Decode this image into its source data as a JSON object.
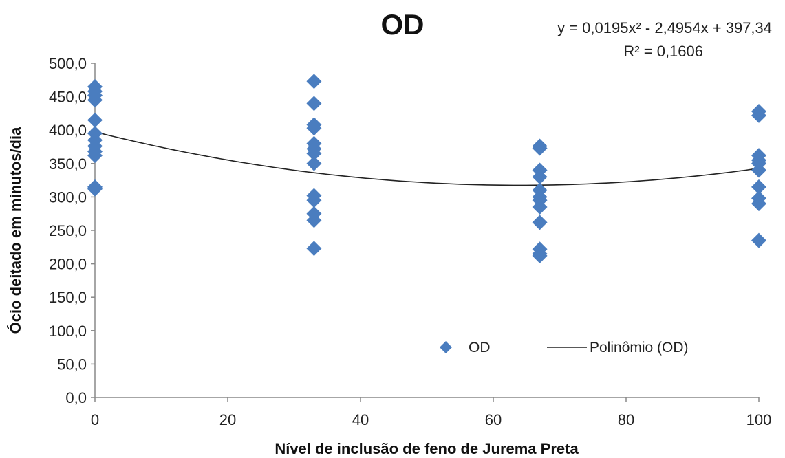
{
  "chart_data": {
    "type": "scatter",
    "title": "OD",
    "xlabel": "Nível de inclusão de feno de Jurema Preta",
    "ylabel": "Ócio deitado em minutos/dia",
    "xlim": [
      0,
      100
    ],
    "ylim": [
      0,
      500
    ],
    "x_ticks": [
      "0",
      "20",
      "40",
      "60",
      "80",
      "100"
    ],
    "y_ticks": [
      "0,0",
      "50,0",
      "100,0",
      "150,0",
      "200,0",
      "250,0",
      "300,0",
      "350,0",
      "400,0",
      "450,0",
      "500,0"
    ],
    "grid": false,
    "legend_position": "bottom-right",
    "marker_color": "#4a7dbf",
    "line_color": "#222222",
    "series": [
      {
        "name": "OD",
        "kind": "scatter",
        "points": [
          {
            "x": 0,
            "y": 465
          },
          {
            "x": 0,
            "y": 458
          },
          {
            "x": 0,
            "y": 452
          },
          {
            "x": 0,
            "y": 445
          },
          {
            "x": 0,
            "y": 415
          },
          {
            "x": 0,
            "y": 395
          },
          {
            "x": 0,
            "y": 385
          },
          {
            "x": 0,
            "y": 376
          },
          {
            "x": 0,
            "y": 368
          },
          {
            "x": 0,
            "y": 362
          },
          {
            "x": 0,
            "y": 315
          },
          {
            "x": 0,
            "y": 312
          },
          {
            "x": 33,
            "y": 473
          },
          {
            "x": 33,
            "y": 440
          },
          {
            "x": 33,
            "y": 408
          },
          {
            "x": 33,
            "y": 403
          },
          {
            "x": 33,
            "y": 380
          },
          {
            "x": 33,
            "y": 372
          },
          {
            "x": 33,
            "y": 365
          },
          {
            "x": 33,
            "y": 350
          },
          {
            "x": 33,
            "y": 302
          },
          {
            "x": 33,
            "y": 295
          },
          {
            "x": 33,
            "y": 275
          },
          {
            "x": 33,
            "y": 265
          },
          {
            "x": 33,
            "y": 223
          },
          {
            "x": 67,
            "y": 376
          },
          {
            "x": 67,
            "y": 373
          },
          {
            "x": 67,
            "y": 340
          },
          {
            "x": 67,
            "y": 330
          },
          {
            "x": 67,
            "y": 310
          },
          {
            "x": 67,
            "y": 300
          },
          {
            "x": 67,
            "y": 295
          },
          {
            "x": 67,
            "y": 285
          },
          {
            "x": 67,
            "y": 262
          },
          {
            "x": 67,
            "y": 222
          },
          {
            "x": 67,
            "y": 215
          },
          {
            "x": 67,
            "y": 212
          },
          {
            "x": 100,
            "y": 428
          },
          {
            "x": 100,
            "y": 422
          },
          {
            "x": 100,
            "y": 362
          },
          {
            "x": 100,
            "y": 355
          },
          {
            "x": 100,
            "y": 350
          },
          {
            "x": 100,
            "y": 340
          },
          {
            "x": 100,
            "y": 315
          },
          {
            "x": 100,
            "y": 298
          },
          {
            "x": 100,
            "y": 290
          },
          {
            "x": 100,
            "y": 235
          }
        ]
      },
      {
        "name": "Polinômio (OD)",
        "kind": "trendline",
        "coefficients": {
          "a": 0.0195,
          "b": -2.4954,
          "c": 397.34
        }
      }
    ],
    "annotations": {
      "equation": "y = 0,0195x² - 2,4954x + 397,34",
      "r_squared": "R² = 0,1606"
    }
  }
}
